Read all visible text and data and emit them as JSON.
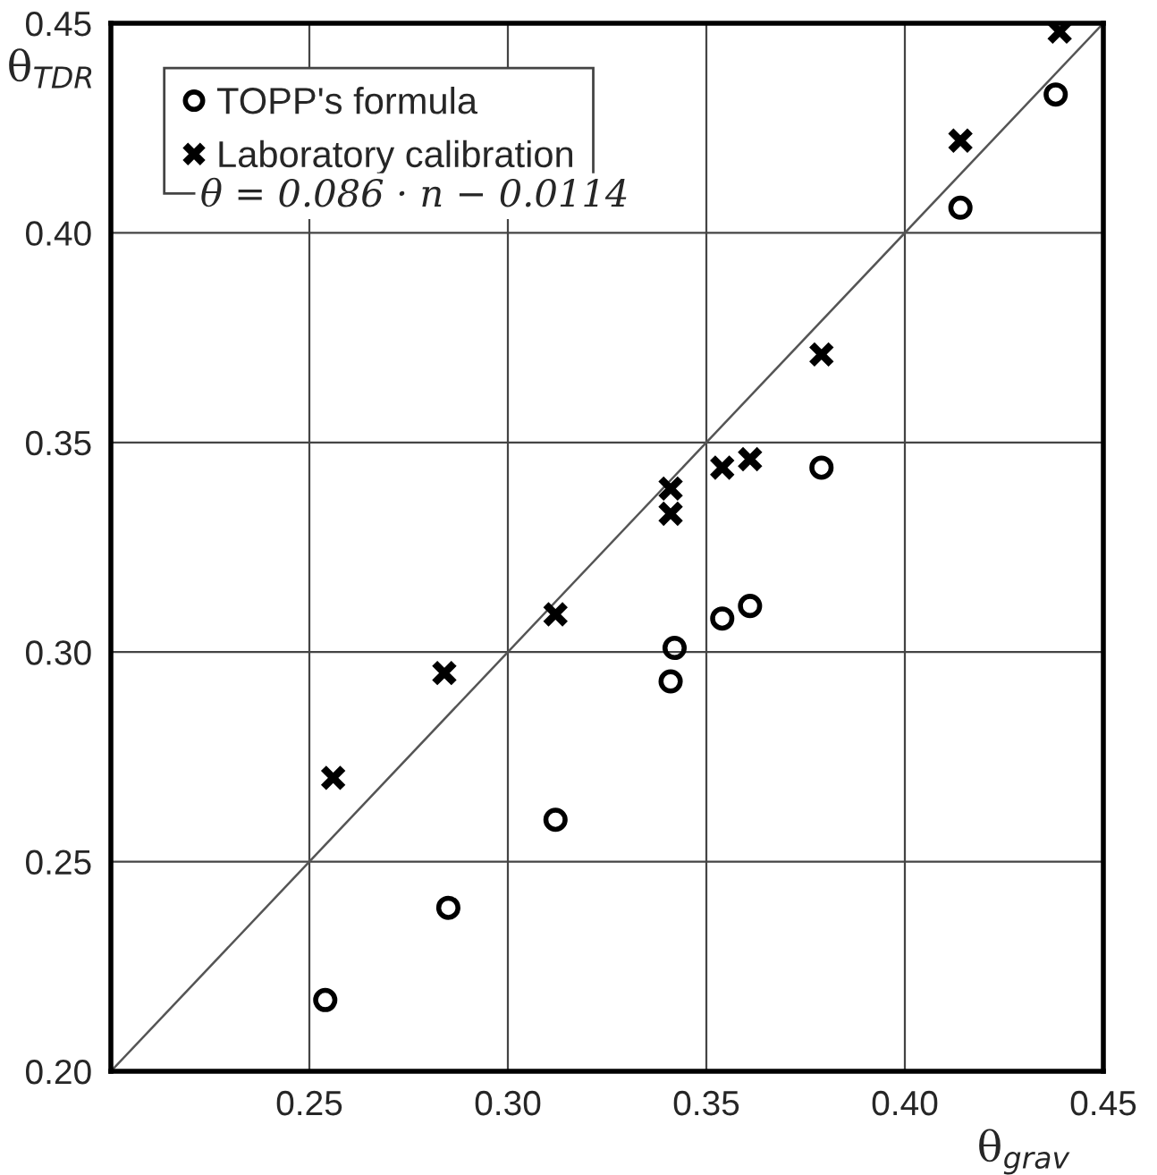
{
  "chart_data": {
    "type": "scatter",
    "xlabel": "θ$_{grav}$",
    "ylabel": "θ$_{TDR}$",
    "xlim": [
      0.2,
      0.45
    ],
    "xticks": [
      {
        "value": 0.2,
        "label": null
      },
      0.25,
      "0.30",
      0.35,
      "0.40",
      0.45
    ],
    "ylim": [
      0.2,
      0.45
    ],
    "yticks": [
      "0.20",
      0.25,
      "0.30",
      0.35,
      "0.40",
      0.45
    ],
    "grid": true,
    "legend": "top left",
    "annotations": [
      "θ = 0.086 · n − 0.0114"
    ],
    "series": [
      {
        "name": "TOPP's formula",
        "color": "#000000",
        "marker": "circle",
        "x": [
          0.254,
          0.285,
          0.312,
          0.341,
          0.342,
          0.354,
          0.361,
          0.379,
          0.414,
          0.438
        ],
        "values": [
          0.217,
          0.239,
          0.26,
          0.293,
          0.301,
          0.308,
          0.311,
          0.344,
          0.406,
          0.433
        ]
      },
      {
        "name": "Laboratory calibration",
        "color": "#000000",
        "marker": "cross",
        "x": [
          0.256,
          0.284,
          0.312,
          0.341,
          0.341,
          0.354,
          0.361,
          0.379,
          0.414,
          0.439
        ],
        "values": [
          0.27,
          0.295,
          0.309,
          0.333,
          0.339,
          0.344,
          0.346,
          0.371,
          0.422,
          0.448
        ]
      },
      {
        "type": "line",
        "color": "#555555",
        "marker": "none",
        "x": [
          0.2,
          0.45
        ],
        "values": [
          0.2,
          0.45
        ]
      }
    ]
  }
}
